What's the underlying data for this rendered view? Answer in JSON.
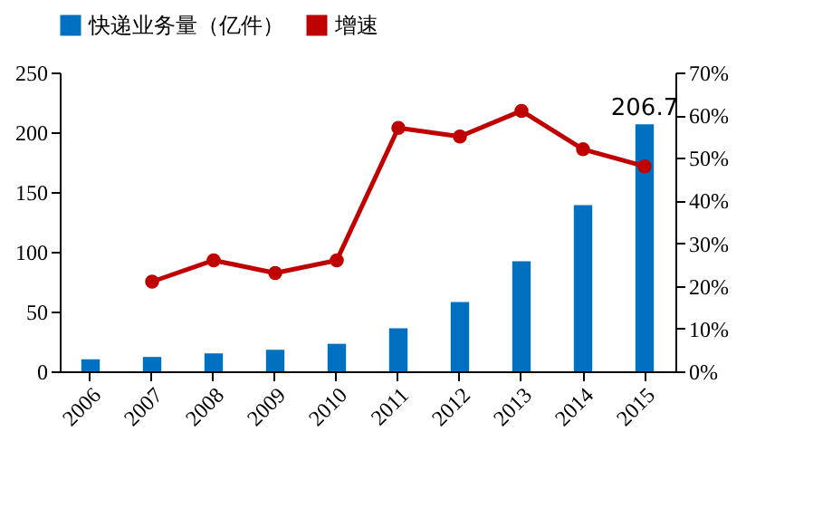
{
  "chart_data": {
    "type": "bar",
    "categories": [
      "2006",
      "2007",
      "2008",
      "2009",
      "2010",
      "2011",
      "2012",
      "2013",
      "2014",
      "2015"
    ],
    "series": [
      {
        "name": "快递业务量（亿件）",
        "color": "#0070c0",
        "values": [
          10,
          12,
          15,
          18,
          23,
          36,
          58,
          92,
          139,
          206.7
        ],
        "value_labels": [
          null,
          null,
          null,
          null,
          null,
          null,
          null,
          null,
          null,
          "206.7"
        ]
      },
      {
        "name": "增速",
        "type": "line",
        "axis": "y2",
        "color": "#c00000",
        "values": [
          null,
          21,
          26,
          23,
          26,
          57,
          55,
          61,
          52,
          48
        ]
      }
    ],
    "ylim": [
      0,
      250
    ],
    "yticks": [
      0,
      50,
      100,
      150,
      200,
      250
    ],
    "y2lim": [
      0,
      70
    ],
    "y2ticks": [
      {
        "value": 0,
        "label": "0%"
      },
      {
        "value": 10,
        "label": "10%"
      },
      {
        "value": 20,
        "label": "20%"
      },
      {
        "value": 30,
        "label": "30%"
      },
      {
        "value": 40,
        "label": "40%"
      },
      {
        "value": 50,
        "label": "50%"
      },
      {
        "value": 60,
        "label": "60%"
      },
      {
        "value": 70,
        "label": "70%"
      }
    ],
    "legend": "top",
    "grid": false,
    "marker": "circle"
  }
}
